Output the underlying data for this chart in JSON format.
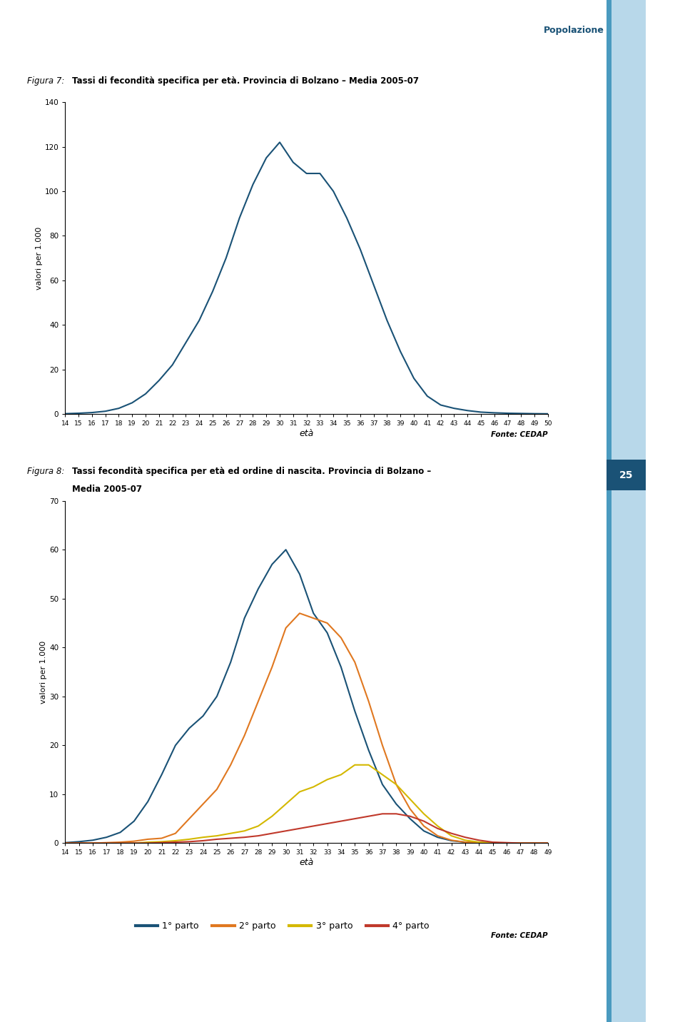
{
  "fig7_title_prefix": "Figura 7:",
  "fig7_title_bold": "Tassi di fecondità specifica per età. Provincia di Bolzano – Media 2005-07",
  "fig8_title_prefix": "Figura 8:",
  "fig8_title_bold_line1": "Tassi fecondità specifica per età ed ordine di nascita. Provincia di Bolzano –",
  "fig8_title_bold_line2": "Media 2005-07",
  "header_text": "Popolazione",
  "page_number": "25",
  "ylabel": "valori per 1.000",
  "xlabel": "età",
  "fonte_text": "Fonte: CEDAP",
  "fig7_ages": [
    14,
    15,
    16,
    17,
    18,
    19,
    20,
    21,
    22,
    23,
    24,
    25,
    26,
    27,
    28,
    29,
    30,
    31,
    32,
    33,
    34,
    35,
    36,
    37,
    38,
    39,
    40,
    41,
    42,
    43,
    44,
    45,
    46,
    47,
    48,
    49,
    50
  ],
  "fig7_values": [
    0.1,
    0.3,
    0.6,
    1.2,
    2.5,
    5.0,
    9.0,
    15.0,
    22.0,
    32.0,
    42.0,
    55.0,
    70.0,
    88.0,
    103.0,
    115.0,
    122.0,
    113.0,
    108.0,
    108.0,
    100.0,
    88.0,
    74.0,
    58.0,
    42.0,
    28.0,
    16.0,
    8.0,
    4.0,
    2.5,
    1.5,
    0.8,
    0.5,
    0.3,
    0.2,
    0.1,
    0.05
  ],
  "fig7_ylim": [
    0,
    140
  ],
  "fig7_yticks": [
    0,
    20,
    40,
    60,
    80,
    100,
    120,
    140
  ],
  "fig7_line_color": "#1a5276",
  "fig8_ages": [
    14,
    15,
    16,
    17,
    18,
    19,
    20,
    21,
    22,
    23,
    24,
    25,
    26,
    27,
    28,
    29,
    30,
    31,
    32,
    33,
    34,
    35,
    36,
    37,
    38,
    39,
    40,
    41,
    42,
    43,
    44,
    45,
    46,
    47,
    48,
    49
  ],
  "fig8_parto1": [
    0.1,
    0.3,
    0.6,
    1.2,
    2.2,
    4.5,
    8.5,
    14.0,
    20.0,
    23.5,
    26.0,
    30.0,
    37.0,
    46.0,
    52.0,
    57.0,
    60.0,
    55.0,
    47.0,
    43.0,
    36.0,
    27.0,
    19.0,
    12.0,
    8.0,
    5.0,
    2.5,
    1.2,
    0.5,
    0.2,
    0.1,
    0.05,
    0.0,
    0.0,
    0.0,
    0.0
  ],
  "fig8_parto2": [
    0.0,
    0.0,
    0.0,
    0.1,
    0.2,
    0.4,
    0.8,
    1.0,
    2.0,
    5.0,
    8.0,
    11.0,
    16.0,
    22.0,
    29.0,
    36.0,
    44.0,
    47.0,
    46.0,
    45.0,
    42.0,
    37.0,
    29.0,
    20.0,
    12.0,
    7.0,
    3.5,
    1.5,
    0.6,
    0.2,
    0.1,
    0.0,
    0.0,
    0.0,
    0.0,
    0.0
  ],
  "fig8_parto3": [
    0.0,
    0.0,
    0.0,
    0.0,
    0.0,
    0.0,
    0.2,
    0.3,
    0.5,
    0.8,
    1.2,
    1.5,
    2.0,
    2.5,
    3.5,
    5.5,
    8.0,
    10.5,
    11.5,
    13.0,
    14.0,
    16.0,
    16.0,
    14.0,
    12.0,
    9.0,
    6.0,
    3.5,
    1.5,
    0.6,
    0.2,
    0.1,
    0.0,
    0.0,
    0.0,
    0.0
  ],
  "fig8_parto4": [
    0.0,
    0.0,
    0.0,
    0.0,
    0.0,
    0.0,
    0.0,
    0.1,
    0.2,
    0.3,
    0.5,
    0.8,
    1.0,
    1.2,
    1.5,
    2.0,
    2.5,
    3.0,
    3.5,
    4.0,
    4.5,
    5.0,
    5.5,
    6.0,
    6.0,
    5.5,
    4.5,
    3.0,
    2.0,
    1.2,
    0.6,
    0.2,
    0.1,
    0.0,
    0.0,
    0.0
  ],
  "fig8_ylim": [
    0,
    70
  ],
  "fig8_yticks": [
    0,
    10,
    20,
    30,
    40,
    50,
    60,
    70
  ],
  "color_parto1": "#1a5276",
  "color_parto2": "#e07820",
  "color_parto3": "#d4b800",
  "color_parto4": "#c0392b",
  "legend_labels": [
    "1° parto",
    "2° parto",
    "3° parto",
    "4° parto"
  ],
  "sidebar_color": "#b8d8ea",
  "sidebar_dark_color": "#4a9abf",
  "header_color": "#1a5276",
  "page_num_bg": "#1a5276"
}
